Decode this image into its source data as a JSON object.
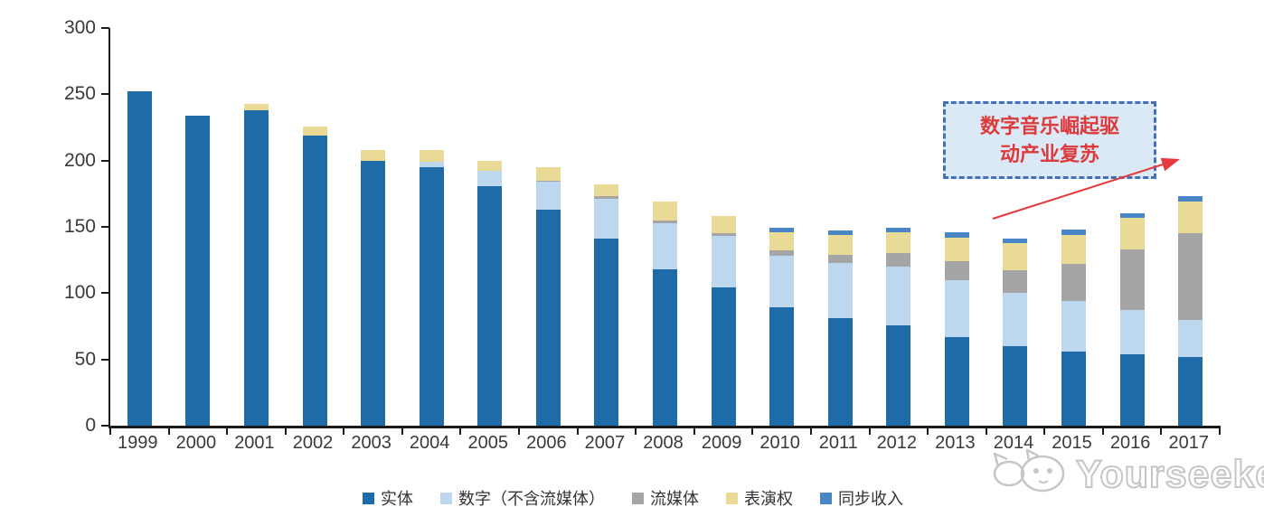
{
  "chart_data": {
    "type": "bar",
    "stacked": true,
    "title": "",
    "xlabel": "",
    "ylabel": "",
    "ylim": [
      0,
      300
    ],
    "yticks": [
      0,
      50,
      100,
      150,
      200,
      250,
      300
    ],
    "grid": false,
    "legend_position": "bottom",
    "x": [
      "1999",
      "2000",
      "2001",
      "2002",
      "2003",
      "2004",
      "2005",
      "2006",
      "2007",
      "2008",
      "2009",
      "2010",
      "2011",
      "2012",
      "2013",
      "2014",
      "2015",
      "2016",
      "2017"
    ],
    "series": [
      {
        "name": "实体",
        "color": "#1F6BA8",
        "values": [
          252,
          234,
          238,
          219,
          200,
          195,
          181,
          163,
          141,
          118,
          104,
          89,
          81,
          76,
          67,
          60,
          56,
          54,
          52
        ]
      },
      {
        "name": "数字（不含流媒体）",
        "color": "#BDD7EE",
        "values": [
          0,
          0,
          0,
          0,
          0,
          4,
          11,
          21,
          30,
          35,
          39,
          39,
          42,
          44,
          43,
          40,
          38,
          33,
          28
        ]
      },
      {
        "name": "流媒体",
        "color": "#A5A5A5",
        "values": [
          0,
          0,
          0,
          0,
          0,
          0,
          0,
          1,
          2,
          2,
          2,
          4,
          6,
          10,
          14,
          17,
          28,
          46,
          65
        ]
      },
      {
        "name": "表演权",
        "color": "#E9DB96",
        "values": [
          0,
          0,
          5,
          7,
          8,
          9,
          8,
          10,
          9,
          14,
          13,
          14,
          15,
          16,
          18,
          21,
          22,
          24,
          24
        ]
      },
      {
        "name": "同步收入",
        "color": "#4A85C8",
        "values": [
          0,
          0,
          0,
          0,
          0,
          0,
          0,
          0,
          0,
          0,
          0,
          3,
          3,
          3,
          4,
          3,
          4,
          3,
          4
        ]
      }
    ]
  },
  "annotation": {
    "line1": "数字音乐崛起驱",
    "line2": "动产业复苏",
    "border_color": "#4470B8",
    "fill_color": "#DBE9F6",
    "text_color": "#DD3B3B",
    "arrow_color": "#E5393B"
  },
  "watermark": {
    "text": "Yourseeker",
    "logo": "cat-mascot-icon"
  },
  "axis_color": "#1a1a1a"
}
